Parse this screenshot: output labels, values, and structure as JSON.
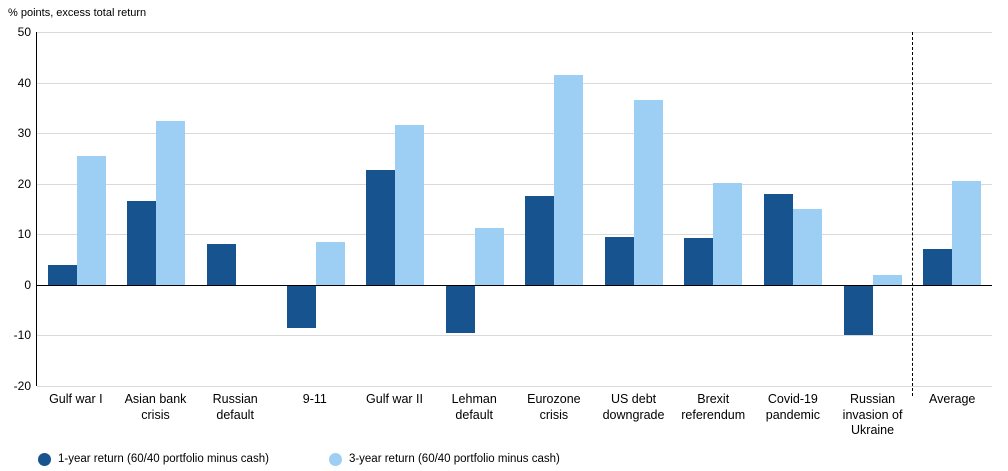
{
  "title": "% points, excess total return",
  "legend": {
    "items": [
      {
        "label": "1-year return (60/40 portfolio minus cash)",
        "color": "#17538f"
      },
      {
        "label": "3-year return (60/40 portfolio minus cash)",
        "color": "#9dcef4"
      }
    ]
  },
  "chart_data": {
    "type": "bar",
    "title": "% points, excess total return",
    "categories": [
      "Gulf war I",
      "Asian bank crisis",
      "Russian default",
      "9-11",
      "Gulf war II",
      "Lehman default",
      "Eurozone crisis",
      "US debt downgrade",
      "Brexit referendum",
      "Covid-19 pandemic",
      "Russian invasion of Ukraine",
      "Average"
    ],
    "series": [
      {
        "name": "1-year return (60/40 portfolio minus cash)",
        "color": "#17538f",
        "values": [
          4,
          16.5,
          8,
          -8.5,
          22.8,
          -9.5,
          17.6,
          9.5,
          9.3,
          18,
          -10,
          7
        ]
      },
      {
        "name": "3-year return (60/40 portfolio minus cash)",
        "color": "#9dcef4",
        "values": [
          25.5,
          32.5,
          0,
          8.5,
          31.6,
          11.2,
          41.5,
          36.6,
          20.2,
          15,
          2,
          20.5
        ]
      }
    ],
    "ylim": [
      -20,
      50
    ],
    "ytick_step": 10,
    "grid": true,
    "legend_position": "bottom",
    "separator_before_category": "Average",
    "xlabel": "",
    "ylabel": "% points, excess total return"
  }
}
